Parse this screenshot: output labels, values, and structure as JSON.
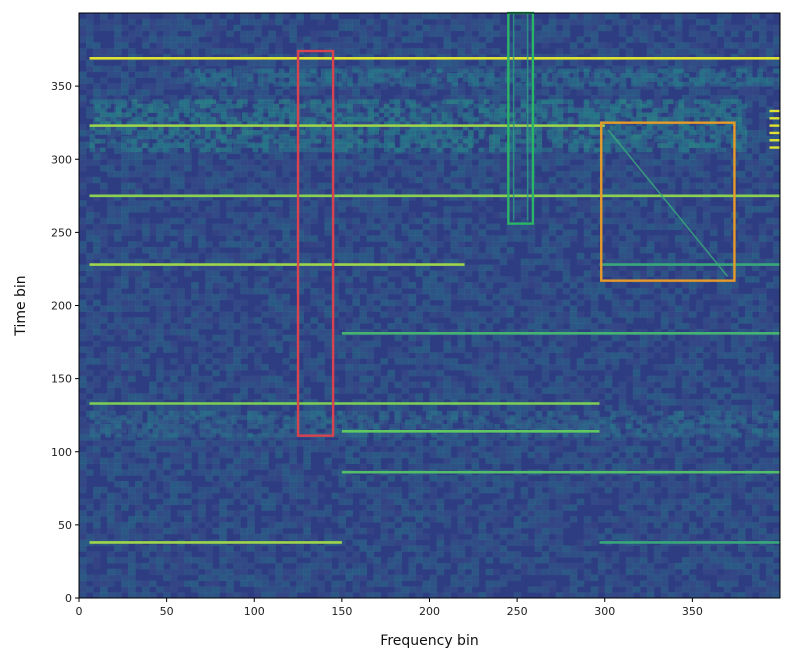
{
  "chart_data": {
    "type": "heatmap",
    "title": "",
    "xlabel": "Frequency bin",
    "ylabel": "Time bin",
    "xlim": [
      0,
      400
    ],
    "ylim": [
      0,
      400
    ],
    "x_ticks": [
      0,
      50,
      100,
      150,
      200,
      250,
      300,
      350
    ],
    "y_ticks": [
      0,
      50,
      100,
      150,
      200,
      250,
      300,
      350
    ],
    "colormap": "viridis",
    "background_color": "#2e3d82",
    "horizontal_lines": [
      {
        "y": 369,
        "x_start": 6,
        "x_end": 400,
        "intensity": 0.95
      },
      {
        "y": 323,
        "x_start": 6,
        "x_end": 300,
        "intensity": 0.85
      },
      {
        "y": 275,
        "x_start": 6,
        "x_end": 400,
        "intensity": 0.82
      },
      {
        "y": 228,
        "x_start": 6,
        "x_end": 220,
        "intensity": 0.85
      },
      {
        "y": 228,
        "x_start": 297,
        "x_end": 400,
        "intensity": 0.6
      },
      {
        "y": 181,
        "x_start": 150,
        "x_end": 400,
        "intensity": 0.65
      },
      {
        "y": 133,
        "x_start": 6,
        "x_end": 297,
        "intensity": 0.8
      },
      {
        "y": 114,
        "x_start": 150,
        "x_end": 297,
        "intensity": 0.75
      },
      {
        "y": 86,
        "x_start": 150,
        "x_end": 400,
        "intensity": 0.7
      },
      {
        "y": 38,
        "x_start": 6,
        "x_end": 150,
        "intensity": 0.85
      },
      {
        "y": 38,
        "x_start": 297,
        "x_end": 400,
        "intensity": 0.6
      }
    ],
    "noise_bands": [
      {
        "y_start": 305,
        "y_end": 340,
        "x_start": 6,
        "x_end": 380,
        "intensity": 0.4
      },
      {
        "y_start": 350,
        "y_end": 362,
        "x_start": 60,
        "x_end": 400,
        "intensity": 0.35
      },
      {
        "y_start": 110,
        "y_end": 128,
        "x_start": 6,
        "x_end": 400,
        "intensity": 0.3
      }
    ],
    "vertical_lines": [
      {
        "x": 248,
        "y_start": 258,
        "y_end": 400,
        "intensity": 0.55
      },
      {
        "x": 256,
        "y_start": 258,
        "y_end": 400,
        "intensity": 0.55
      }
    ],
    "chirp": {
      "x_start": 302,
      "y_start": 320,
      "x_end": 370,
      "y_end": 220,
      "intensity": 0.6
    },
    "edge_pulses": {
      "x_start": 394,
      "x_end": 400,
      "y_values": [
        308,
        313,
        318,
        323,
        328,
        333
      ],
      "intensity": 0.95
    },
    "annotations": [
      {
        "shape": "rectangle",
        "x_start": 125,
        "x_end": 145,
        "y_start": 111,
        "y_end": 374,
        "color": "#d9434f"
      },
      {
        "shape": "rectangle",
        "x_start": 245,
        "x_end": 259,
        "y_start": 256,
        "y_end": 400,
        "color": "#2bb567"
      },
      {
        "shape": "rectangle",
        "x_start": 298,
        "x_end": 374,
        "y_start": 217,
        "y_end": 325,
        "color": "#e69a2a"
      }
    ]
  }
}
